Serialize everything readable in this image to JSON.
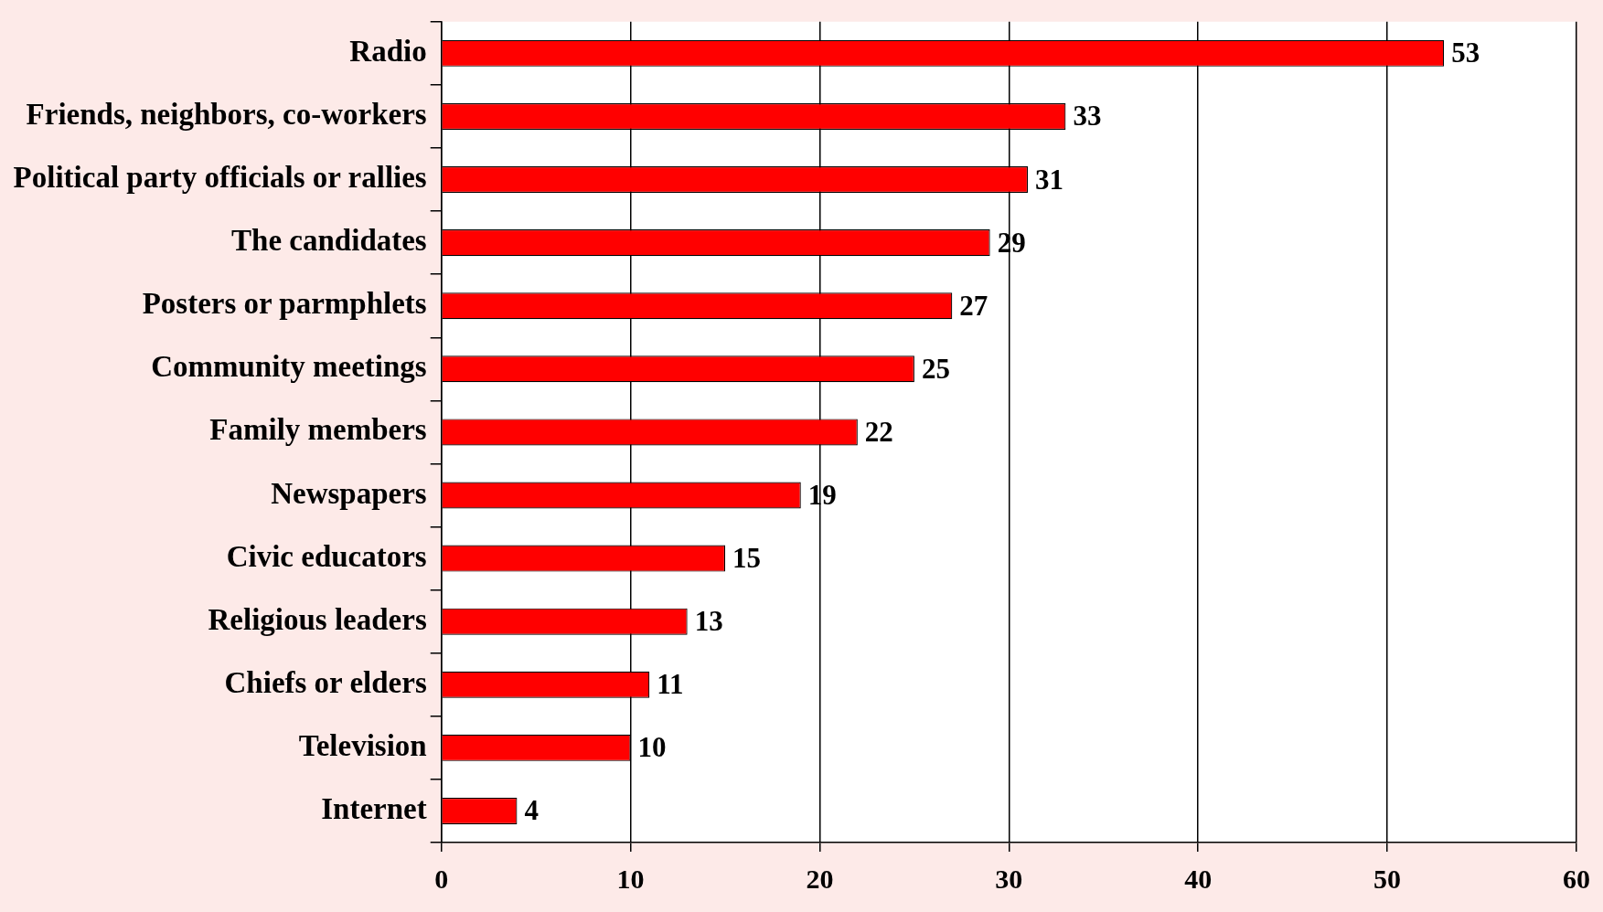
{
  "chart_data": {
    "type": "bar",
    "orientation": "horizontal",
    "categories": [
      "Radio",
      "Friends, neighbors, co-workers",
      "Political party officials or rallies",
      "The candidates",
      "Posters or parmphlets",
      "Community meetings",
      "Family members",
      "Newspapers",
      "Civic educators",
      "Religious leaders",
      "Chiefs or elders",
      "Television",
      "Internet"
    ],
    "values": [
      53,
      33,
      31,
      29,
      27,
      25,
      22,
      19,
      15,
      13,
      11,
      10,
      4
    ],
    "color": "#ff0000",
    "xlim": [
      0,
      60
    ],
    "xticks": [
      0,
      10,
      20,
      30,
      40,
      50,
      60
    ],
    "grid": "x",
    "legend": false,
    "data_labels": true
  }
}
